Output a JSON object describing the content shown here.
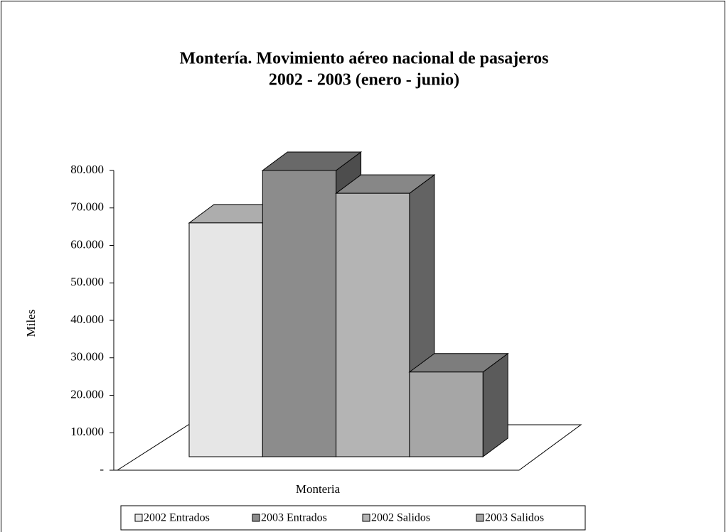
{
  "chart_data": {
    "type": "bar3d",
    "title": "Montería. Movimiento aéreo nacional de pasajeros",
    "subtitle": "2002 - 2003  (enero - junio)",
    "y_label": "Miles",
    "categories": [
      "Monteria"
    ],
    "series": [
      {
        "name": "2002 Entrados",
        "color": "#e6e6e6",
        "values": [
          62400
        ]
      },
      {
        "name": "2003 Entrados",
        "color": "#8c8c8c",
        "values": [
          76400
        ]
      },
      {
        "name": "2002 Salidos",
        "color": "#b4b4b4",
        "values": [
          70300
        ]
      },
      {
        "name": "2003 Salidos",
        "color": "#a6a6a6",
        "values": [
          22600
        ]
      }
    ],
    "ylim": [
      0,
      80000
    ],
    "yticks": [
      {
        "value": 0,
        "label": "-"
      },
      {
        "value": 10000,
        "label": "10.000"
      },
      {
        "value": 20000,
        "label": "20.000"
      },
      {
        "value": 30000,
        "label": "30.000"
      },
      {
        "value": 40000,
        "label": "40.000"
      },
      {
        "value": 50000,
        "label": "50.000"
      },
      {
        "value": 60000,
        "label": "60.000"
      },
      {
        "value": 70000,
        "label": "70.000"
      },
      {
        "value": 80000,
        "label": "80.000"
      }
    ],
    "legend": "bottom"
  }
}
